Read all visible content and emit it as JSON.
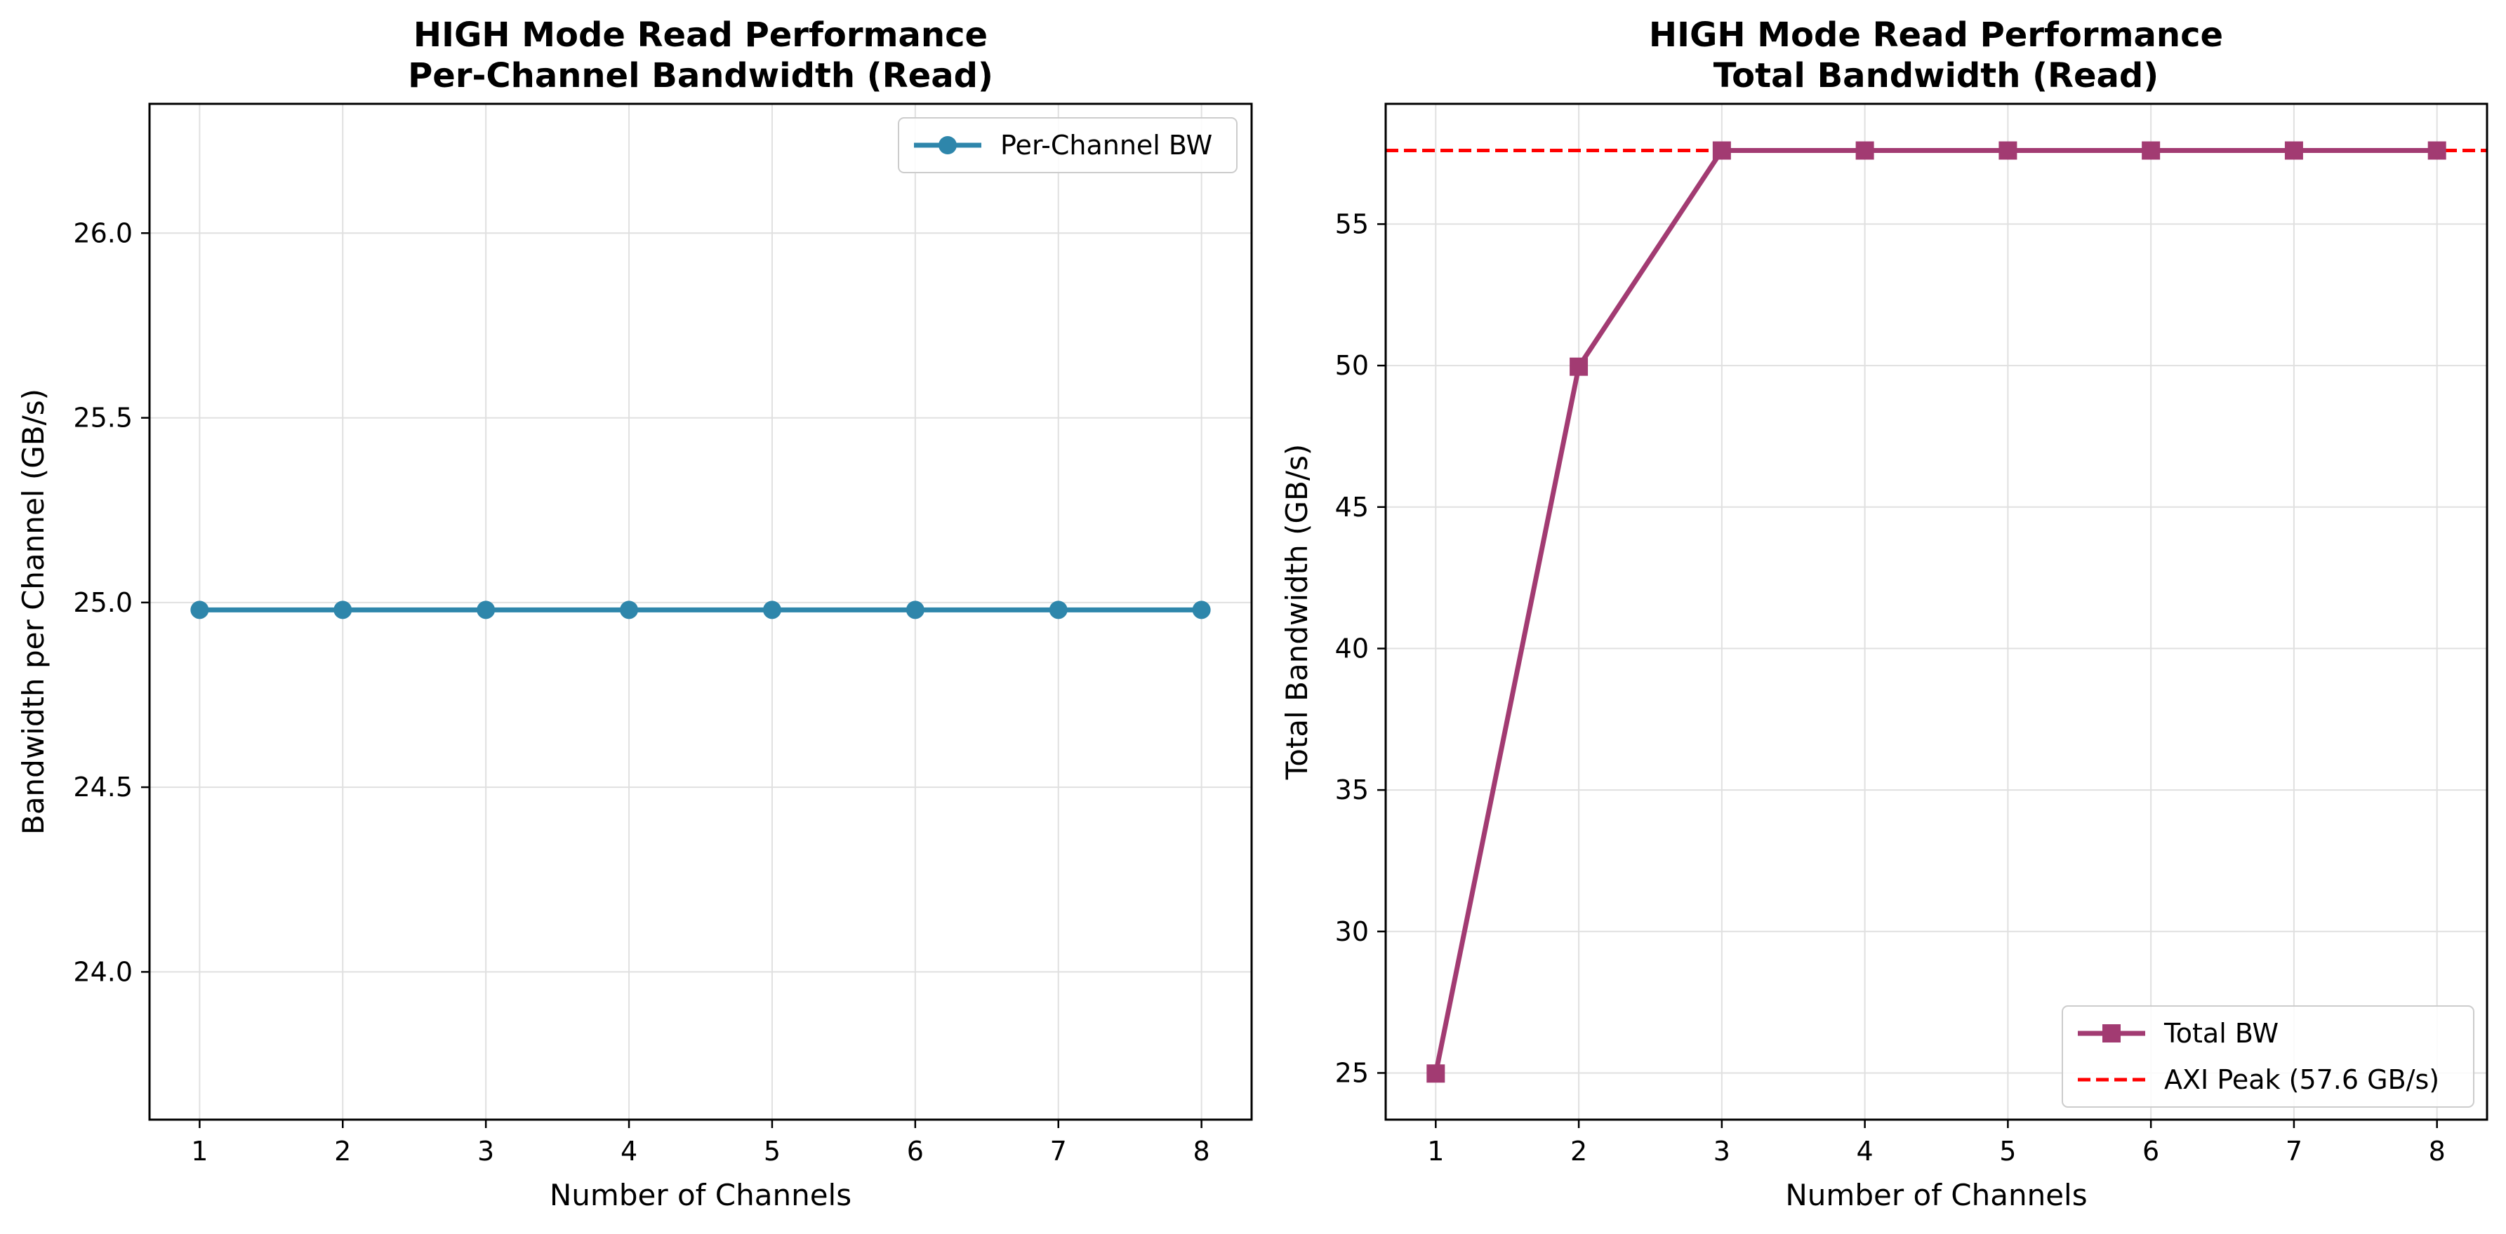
{
  "chart_data": [
    {
      "type": "line",
      "title": "HIGH Mode Read Performance\nPer-Channel Bandwidth (Read)",
      "xlabel": "Number of Channels",
      "ylabel": "Bandwidth per Channel (GB/s)",
      "x": [
        1,
        2,
        3,
        4,
        5,
        6,
        7,
        8
      ],
      "xlim": [
        0.65,
        8.35
      ],
      "ylim": [
        23.6,
        26.35
      ],
      "xticks": [
        1,
        2,
        3,
        4,
        5,
        6,
        7,
        8
      ],
      "yticks": [
        24.0,
        24.5,
        25.0,
        25.5,
        26.0
      ],
      "ytick_labels": [
        "24.0",
        "24.5",
        "25.0",
        "25.5",
        "26.0"
      ],
      "grid": true,
      "legend_position": "upper right",
      "series": [
        {
          "name": "Per-Channel BW",
          "color": "#2E86AB",
          "marker": "circle",
          "line": "solid",
          "values": [
            24.98,
            24.98,
            24.98,
            24.98,
            24.98,
            24.98,
            24.98,
            24.98
          ]
        }
      ]
    },
    {
      "type": "line",
      "title": "HIGH Mode Read Performance\nTotal Bandwidth (Read)",
      "xlabel": "Number of Channels",
      "ylabel": "Total Bandwidth (GB/s)",
      "x": [
        1,
        2,
        3,
        4,
        5,
        6,
        7,
        8
      ],
      "xlim": [
        0.65,
        8.35
      ],
      "ylim": [
        23.35,
        59.25
      ],
      "xticks": [
        1,
        2,
        3,
        4,
        5,
        6,
        7,
        8
      ],
      "yticks": [
        25,
        30,
        35,
        40,
        45,
        50,
        55
      ],
      "ytick_labels": [
        "25",
        "30",
        "35",
        "40",
        "45",
        "50",
        "55"
      ],
      "grid": true,
      "legend_position": "lower right",
      "series": [
        {
          "name": "Total BW",
          "color": "#A23B72",
          "marker": "square",
          "line": "solid",
          "values": [
            24.98,
            49.96,
            57.6,
            57.6,
            57.6,
            57.6,
            57.6,
            57.6
          ]
        }
      ],
      "reference_lines": [
        {
          "name": "AXI Peak (57.6 GB/s)",
          "y": 57.6,
          "color": "#FF0000",
          "line": "dashed"
        }
      ]
    }
  ]
}
